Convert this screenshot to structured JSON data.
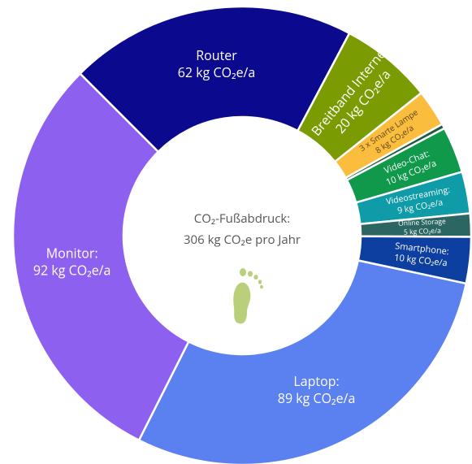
{
  "chart_data": {
    "type": "donut",
    "center_text": [
      "CO₂-Fußabdruck:",
      "306 kg CO₂e pro Jahr"
    ],
    "categories": [
      "Router",
      "Breitband Internet",
      "3 x Smarte Lampe",
      null,
      "Video-Chat:",
      "Videostreaming:",
      "Online Storage",
      "Smartphone:",
      "Laptop:",
      "Monitor:"
    ],
    "values": [
      62,
      20,
      8,
      1,
      10,
      9,
      5,
      10,
      89,
      92
    ],
    "value_labels": [
      "62 kg CO₂e/a",
      "20 kg CO₂e/a",
      "8 kg CO₂e/a",
      null,
      "10 kg CO₂e/a",
      "9 kg CO₂e/a",
      "5 kg CO₂e/a",
      "10 kg CO₂e/a",
      "89 kg CO₂e/a",
      "92 kg CO₂e/a"
    ],
    "colors": [
      "#0b0a8e",
      "#7b9b02",
      "#fbbd3e",
      "#1d5b3c",
      "#10994b",
      "#0f9ba8",
      "#2b6662",
      "#0c3f9f",
      "#5b80f0",
      "#8e60f0"
    ]
  }
}
